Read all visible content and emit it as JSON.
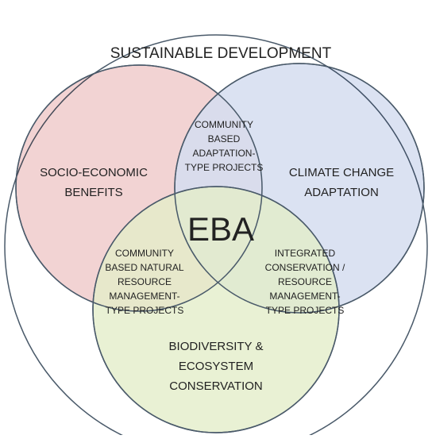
{
  "title": "SUSTAINABLE DEVELOPMENT",
  "circles": [
    {
      "label": [
        "SOCIO-ECONOMIC",
        "BENEFITS"
      ]
    },
    {
      "label": [
        "CLIMATE CHANGE",
        "ADAPTATION"
      ]
    },
    {
      "label": [
        "BIODIVERSITY &",
        "ECOSYSTEM",
        "CONSERVATION"
      ]
    }
  ],
  "intersections": [
    {
      "label": [
        "COMMUNITY",
        "BASED",
        "ADAPTATION-",
        "TYPE PROJECTS"
      ]
    },
    {
      "label": [
        "COMMUNITY",
        "BASED NATURAL",
        "RESOURCE",
        "MANAGEMENT-",
        "TYPE PROJECTS"
      ]
    },
    {
      "label": [
        "INTEGRATED",
        "CONSERVATION /",
        "RESOURCE",
        "MANAGEMENT-",
        "TYPE PROJECTS"
      ]
    }
  ],
  "center": "EBA"
}
